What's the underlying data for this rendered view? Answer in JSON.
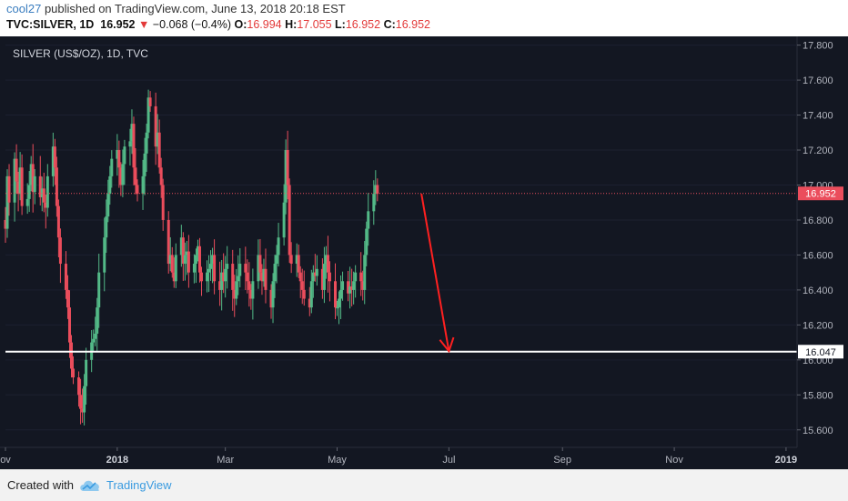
{
  "header": {
    "author": "cool27",
    "published_text": "published on TradingView.com, June 13, 2018 20:18 EST",
    "symbol": "TVC:SILVER, 1D",
    "last": "16.952",
    "change": "−0.068 (−0.4%)",
    "o_label": "O:",
    "o_value": "16.994",
    "h_label": "H:",
    "h_value": "17.055",
    "l_label": "L:",
    "l_value": "16.952",
    "c_label": "C:",
    "c_value": "16.952"
  },
  "colors": {
    "background": "#131722",
    "up": "#53b987",
    "down": "#eb4d5c",
    "last_price": "#eb4d5c",
    "support_line": "#ffffff",
    "arrow": "#ff2020",
    "axis_text": "#b2b5be"
  },
  "footer": {
    "created_with": "Created with",
    "brand": "TradingView"
  },
  "chart_data": {
    "type": "candlestick",
    "title": "SILVER (US$/OZ), 1D, TVC",
    "y_range": [
      15.5,
      17.85
    ],
    "y_ticks": [
      "17.800",
      "17.600",
      "17.400",
      "17.200",
      "17.000",
      "16.800",
      "16.600",
      "16.400",
      "16.200",
      "16.000",
      "15.800",
      "15.600"
    ],
    "x_range": [
      "2017-11-01",
      "2019-01-07"
    ],
    "x_ticks": [
      {
        "date": "2017-11-01",
        "label": "ov",
        "bold": false
      },
      {
        "date": "2018-01-01",
        "label": "2018",
        "bold": true
      },
      {
        "date": "2018-03-01",
        "label": "Mar",
        "bold": false
      },
      {
        "date": "2018-05-01",
        "label": "May",
        "bold": false
      },
      {
        "date": "2018-07-01",
        "label": "Jul",
        "bold": false
      },
      {
        "date": "2018-09-01",
        "label": "Sep",
        "bold": false
      },
      {
        "date": "2018-11-01",
        "label": "Nov",
        "bold": false
      },
      {
        "date": "2019-01-01",
        "label": "2019",
        "bold": true
      }
    ],
    "last_price": {
      "value": 16.952,
      "label": "16.952"
    },
    "support_level": {
      "value": 16.047,
      "label": "16.047"
    },
    "projection_arrow": {
      "from": {
        "date": "2018-06-16",
        "value": 16.95
      },
      "to": {
        "date": "2018-07-01",
        "value": 16.05
      }
    },
    "close_series": {
      "start": "2017-11-01",
      "closes": [
        16.75,
        17.05,
        16.9,
        17.15,
        17.02,
        16.95,
        17.1,
        16.88,
        16.92,
        17.0,
        17.12,
        16.96,
        17.05,
        16.93,
        16.98,
        16.9,
        16.87,
        17.05,
        17.22,
        17.1,
        16.88,
        16.7,
        16.55,
        16.4,
        16.3,
        16.1,
        15.95,
        15.9,
        15.8,
        15.72,
        15.7,
        15.85,
        16.0,
        16.1,
        16.12,
        16.15,
        16.3,
        16.5,
        16.7,
        16.82,
        16.95,
        17.05,
        17.15,
        17.2,
        17.1,
        17.0,
        17.12,
        17.22,
        17.25,
        17.35,
        17.1,
        17.0,
        16.95,
        17.05,
        17.18,
        17.3,
        17.5,
        17.45,
        17.22,
        17.3,
        17.1,
        17.0,
        16.8,
        16.55,
        16.6,
        16.5,
        16.45,
        16.6,
        16.7,
        16.55,
        16.6,
        16.62,
        16.5,
        16.55,
        16.6,
        16.65,
        16.5,
        16.45,
        16.5,
        16.52,
        16.55,
        16.6,
        16.45,
        16.4,
        16.5,
        16.45,
        16.52,
        16.55,
        16.4,
        16.35,
        16.45,
        16.48,
        16.55,
        16.5,
        16.45,
        16.4,
        16.35,
        16.45,
        16.6,
        16.5,
        16.45,
        16.52,
        16.4,
        16.3,
        16.45,
        16.55,
        16.6,
        16.7,
        16.9,
        17.2,
        17.0,
        16.6,
        16.55,
        16.6,
        16.5,
        16.45,
        16.4,
        16.35,
        16.3,
        16.45,
        16.5,
        16.48,
        16.52,
        16.4,
        16.55,
        16.6,
        16.5,
        16.45,
        16.3,
        16.3,
        16.35,
        16.4,
        16.45,
        16.38,
        16.42,
        16.4,
        16.45,
        16.5,
        16.45,
        16.4,
        16.6,
        16.75,
        16.85,
        16.95,
        17.0,
        16.95
      ]
    }
  }
}
